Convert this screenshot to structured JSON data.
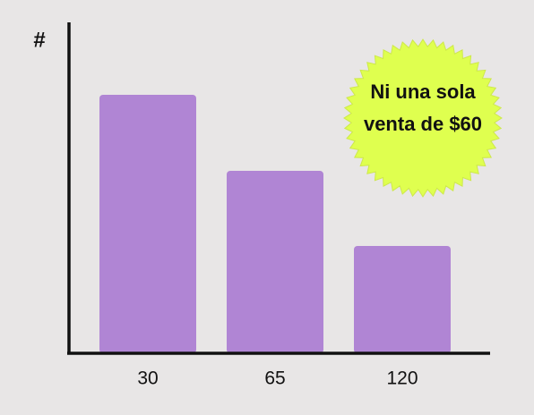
{
  "chart_data": {
    "type": "bar",
    "y_label": "#",
    "categories": [
      "30",
      "65",
      "120"
    ],
    "values": [
      289,
      204,
      120
    ],
    "color": "#b085d4",
    "ylim": [
      0,
      370
    ],
    "annotation": [
      "Ni  una sola",
      "venta de $60"
    ]
  }
}
